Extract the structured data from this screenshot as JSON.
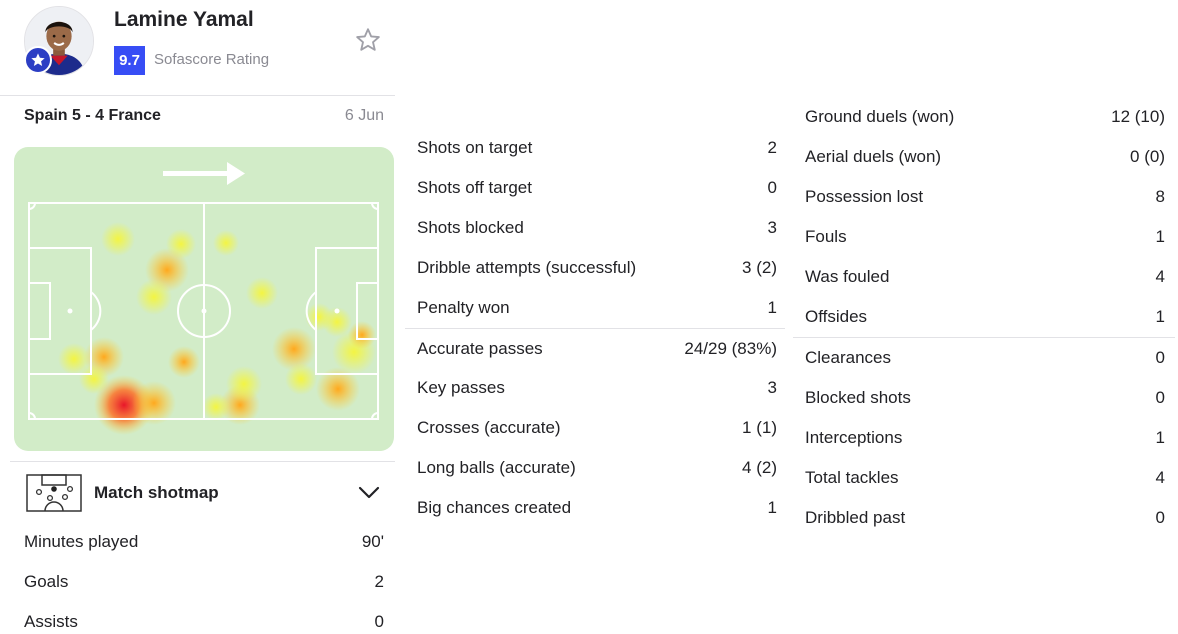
{
  "player": {
    "name": "Lamine Yamal",
    "rating": "9.7",
    "rating_label": "Sofascore Rating",
    "avatar_icon": "player-photo",
    "badge_icon": "star-icon",
    "favorite_icon": "star-outline-icon"
  },
  "match": {
    "title": "Spain 5 - 4 France",
    "date": "6 Jun"
  },
  "heatmap": {
    "attack_direction": "right",
    "direction_icon": "arrow-right-icon",
    "colors": {
      "pitch": "#d2ecc8",
      "lines": "#ffffff",
      "low": "#f5f53c",
      "mid": "#ffa81e",
      "high": "#e8162a"
    }
  },
  "shotmap": {
    "label": "Match shotmap",
    "icon": "shotmap-icon",
    "toggle_icon": "chevron-down-icon"
  },
  "left_stats": [
    {
      "label": "Minutes played",
      "value": "90'"
    },
    {
      "label": "Goals",
      "value": "2"
    },
    {
      "label": "Assists",
      "value": "0"
    }
  ],
  "mid_stats": [
    {
      "label": "Shots on target",
      "value": "2"
    },
    {
      "label": "Shots off target",
      "value": "0"
    },
    {
      "label": "Shots blocked",
      "value": "3"
    },
    {
      "label": "Dribble attempts (successful)",
      "value": "3 (2)"
    },
    {
      "label": "Penalty won",
      "value": "1"
    },
    {
      "label": "Accurate passes",
      "value": "24/29 (83%)"
    },
    {
      "label": "Key passes",
      "value": "3"
    },
    {
      "label": "Crosses (accurate)",
      "value": "1 (1)"
    },
    {
      "label": "Long balls (accurate)",
      "value": "4 (2)"
    },
    {
      "label": "Big chances created",
      "value": "1"
    }
  ],
  "right_stats": [
    {
      "label": "Ground duels (won)",
      "value": "12 (10)"
    },
    {
      "label": "Aerial duels (won)",
      "value": "0 (0)"
    },
    {
      "label": "Possession lost",
      "value": "8"
    },
    {
      "label": "Fouls",
      "value": "1"
    },
    {
      "label": "Was fouled",
      "value": "4"
    },
    {
      "label": "Offsides",
      "value": "1"
    },
    {
      "label": "Clearances",
      "value": "0"
    },
    {
      "label": "Blocked shots",
      "value": "0"
    },
    {
      "label": "Interceptions",
      "value": "1"
    },
    {
      "label": "Total tackles",
      "value": "4"
    },
    {
      "label": "Dribbled past",
      "value": "0"
    }
  ]
}
